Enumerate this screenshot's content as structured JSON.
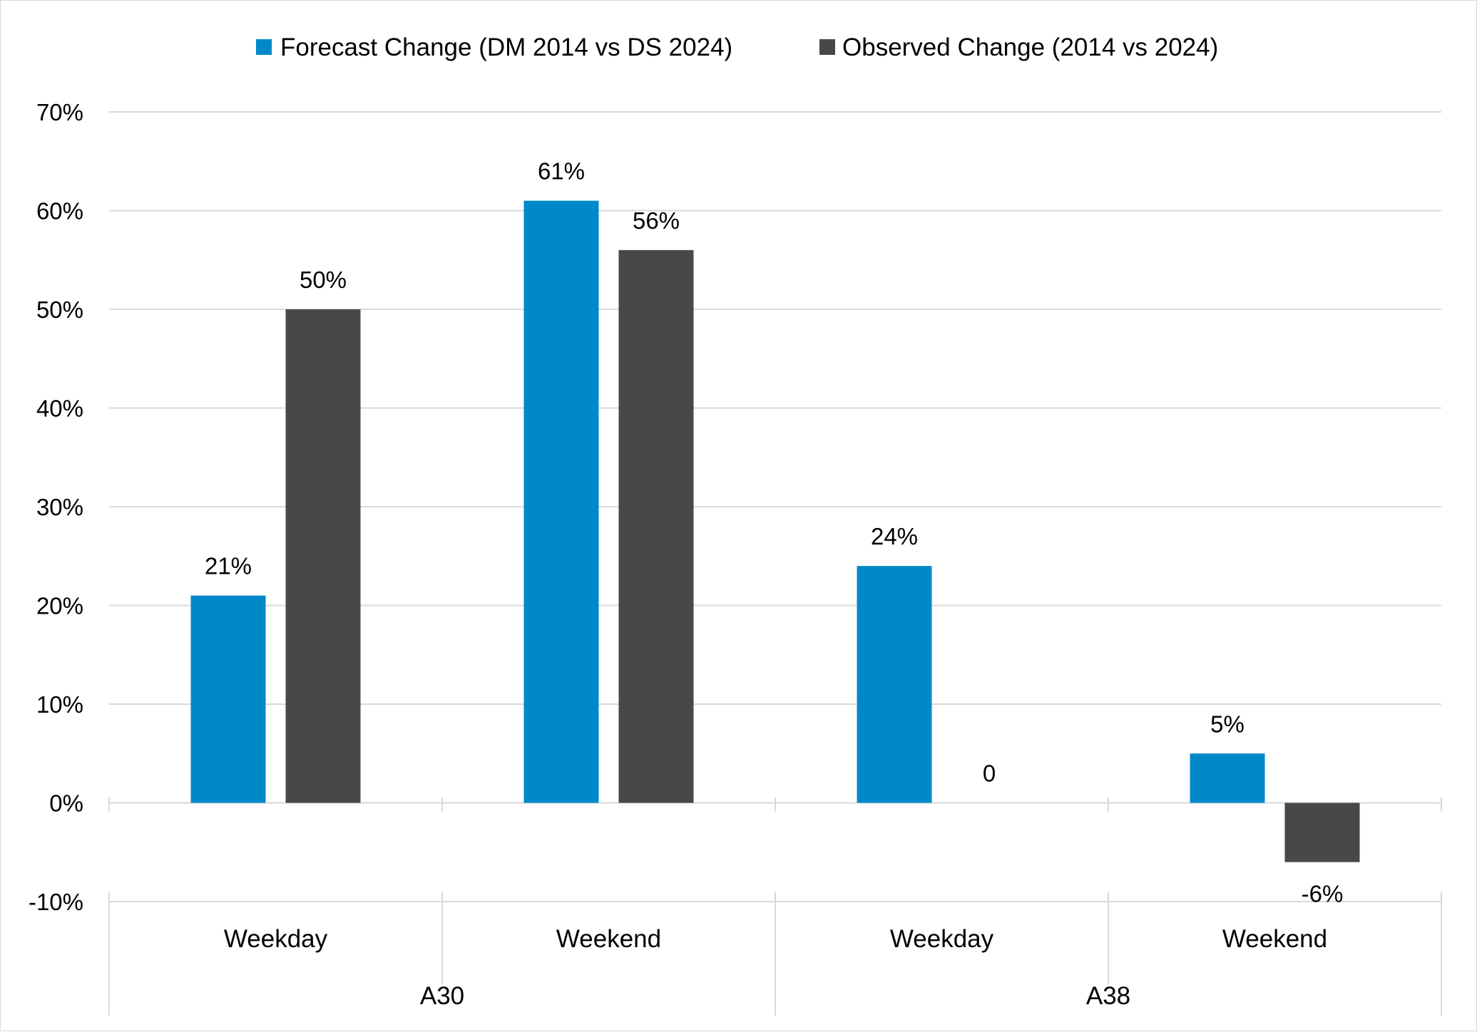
{
  "chart_data": {
    "type": "bar",
    "groups": [
      {
        "label": "A30",
        "categories": [
          "Weekday",
          "Weekend"
        ]
      },
      {
        "label": "A38",
        "categories": [
          "Weekday",
          "Weekend"
        ]
      }
    ],
    "categories": [
      "Weekday",
      "Weekend",
      "Weekday",
      "Weekend"
    ],
    "series": [
      {
        "name": "Forecast Change (DM 2014 vs DS 2024)",
        "color": "#0089c9",
        "values": [
          21,
          61,
          24,
          5
        ],
        "labels": [
          "21%",
          "61%",
          "24%",
          "5%"
        ]
      },
      {
        "name": "Observed Change (2014 vs 2024)",
        "color": "#484848",
        "values": [
          50,
          56,
          0,
          -6
        ],
        "labels": [
          "50%",
          "56%",
          "0",
          "-6%"
        ]
      }
    ],
    "ylim": [
      -10,
      70
    ],
    "yticks": [
      70,
      60,
      50,
      40,
      30,
      20,
      10,
      0,
      -10
    ],
    "ytick_labels": [
      "70%",
      "60%",
      "50%",
      "40%",
      "30%",
      "20%",
      "10%",
      "0%",
      "-10%"
    ],
    "grid": true,
    "legend_position": "top-center",
    "gridline_color": "#d9d9d9",
    "title": "",
    "xlabel": "",
    "ylabel": ""
  }
}
